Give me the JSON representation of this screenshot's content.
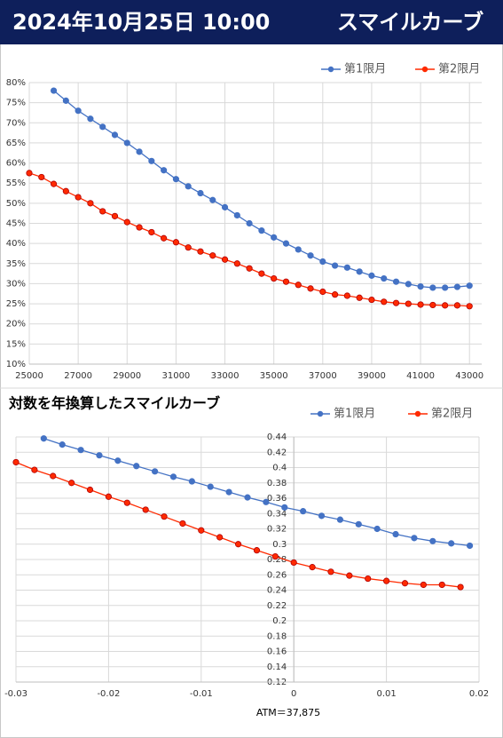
{
  "header": {
    "date": "2024年10月25日 10:00",
    "title": "スマイルカーブ"
  },
  "chart_data": [
    {
      "type": "line",
      "x": [
        25000,
        25500,
        26000,
        26500,
        27000,
        27500,
        28000,
        28500,
        29000,
        29500,
        30000,
        30500,
        31000,
        31500,
        32000,
        32500,
        33000,
        33500,
        34000,
        34500,
        35000,
        35500,
        36000,
        36500,
        37000,
        37500,
        38000,
        38500,
        39000,
        39500,
        40000,
        40500,
        41000,
        41500,
        42000,
        42500,
        43000
      ],
      "series": [
        {
          "name": "第1限月",
          "color": "#4472c4",
          "values": [
            null,
            null,
            78,
            75.5,
            73,
            71,
            69,
            67,
            65,
            62.8,
            60.5,
            58.2,
            56,
            54.2,
            52.5,
            50.8,
            49,
            47,
            45,
            43.2,
            41.5,
            40,
            38.5,
            37,
            35.5,
            34.5,
            34,
            33,
            32,
            31.3,
            30.5,
            29.9,
            29.3,
            29,
            29,
            29.2,
            29.5
          ]
        },
        {
          "name": "第2限月",
          "color": "#ff2a00",
          "values": [
            57.5,
            56.5,
            54.8,
            53,
            51.5,
            50,
            48,
            46.8,
            45.3,
            44,
            42.8,
            41.3,
            40.3,
            39,
            38,
            37,
            36,
            35,
            33.8,
            32.5,
            31.3,
            30.5,
            29.7,
            28.8,
            28,
            27.3,
            27,
            26.5,
            26,
            25.5,
            25.2,
            25,
            24.8,
            24.7,
            24.6,
            24.6,
            24.4
          ]
        }
      ],
      "xlim": [
        25000,
        43500
      ],
      "xticks": [
        25000,
        27000,
        29000,
        31000,
        33000,
        35000,
        37000,
        39000,
        41000,
        43000
      ],
      "ylim": [
        10,
        80
      ],
      "yticks": [
        {
          "value": 10,
          "label": "10%"
        },
        {
          "value": 15,
          "label": "15%"
        },
        {
          "value": 20,
          "label": "20%"
        },
        {
          "value": 25,
          "label": "25%"
        },
        {
          "value": 30,
          "label": "30%"
        },
        {
          "value": 35,
          "label": "35%"
        },
        {
          "value": 40,
          "label": "40%"
        },
        {
          "value": 45,
          "label": "45%"
        },
        {
          "value": 50,
          "label": "50%"
        },
        {
          "value": 55,
          "label": "55%"
        },
        {
          "value": 60,
          "label": "60%"
        },
        {
          "value": 65,
          "label": "65%"
        },
        {
          "value": 70,
          "label": "70%"
        },
        {
          "value": 75,
          "label": "75%"
        },
        {
          "value": 80,
          "label": "80%"
        }
      ],
      "grid": true,
      "legend": "upper right"
    },
    {
      "type": "scatter",
      "title": "対数を年換算したスマイルカーブ",
      "xlabel": "ATM＝37,875",
      "series": [
        {
          "name": "第1限月",
          "color": "#4472c4",
          "x": [
            -0.027,
            -0.025,
            -0.023,
            -0.021,
            -0.019,
            -0.017,
            -0.015,
            -0.013,
            -0.011,
            -0.009,
            -0.007,
            -0.005,
            -0.003,
            -0.001,
            0.001,
            0.003,
            0.005,
            0.007,
            0.009,
            0.011,
            0.013,
            0.015,
            0.017,
            0.019
          ],
          "values": [
            0.438,
            0.43,
            0.423,
            0.416,
            0.409,
            0.402,
            0.395,
            0.388,
            0.382,
            0.375,
            0.368,
            0.361,
            0.355,
            0.348,
            0.343,
            0.337,
            0.332,
            0.326,
            0.32,
            0.313,
            0.308,
            0.304,
            0.301,
            0.298
          ]
        },
        {
          "name": "第2限月",
          "color": "#ff2a00",
          "x": [
            -0.03,
            -0.028,
            -0.026,
            -0.024,
            -0.022,
            -0.02,
            -0.018,
            -0.016,
            -0.014,
            -0.012,
            -0.01,
            -0.008,
            -0.006,
            -0.004,
            -0.002,
            0,
            0.002,
            0.004,
            0.006,
            0.008,
            0.01,
            0.012,
            0.014,
            0.016,
            0.018
          ],
          "values": [
            0.407,
            0.397,
            0.389,
            0.38,
            0.371,
            0.362,
            0.354,
            0.345,
            0.336,
            0.327,
            0.318,
            0.309,
            0.3,
            0.292,
            0.284,
            0.276,
            0.27,
            0.264,
            0.259,
            0.255,
            0.252,
            0.249,
            0.247,
            0.247,
            0.244
          ]
        }
      ],
      "xlim": [
        -0.03,
        0.02
      ],
      "xticks": [
        -0.03,
        -0.02,
        -0.01,
        0,
        0.01,
        0.02
      ],
      "ylim": [
        0.12,
        0.44
      ],
      "yticks": [
        0.12,
        0.14,
        0.16,
        0.18,
        0.2,
        0.22,
        0.24,
        0.26,
        0.28,
        0.3,
        0.32,
        0.34,
        0.36,
        0.38,
        0.4,
        0.42,
        0.44
      ],
      "grid": true,
      "legend": "upper right"
    }
  ]
}
